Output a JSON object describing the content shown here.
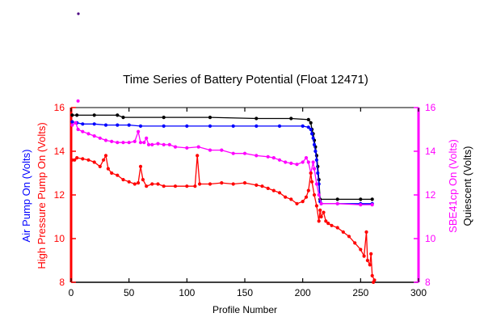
{
  "chart_data": {
    "type": "line",
    "title": "Time Series of Battery Potential (Float 12471)",
    "xlabel": "Profile Number",
    "xlim": [
      0,
      300
    ],
    "x_ticks": [
      0,
      50,
      100,
      150,
      200,
      250,
      300
    ],
    "ylim": [
      8,
      16
    ],
    "y_ticks": [
      8,
      10,
      12,
      14,
      16
    ],
    "left_axis_labels": [
      {
        "text": "Air Pump On (Volts)",
        "color": "#0000ff"
      },
      {
        "text": "High Pressure Pump On (Volts)",
        "color": "#ff0000"
      }
    ],
    "right_axis_labels": [
      {
        "text": "SBE41cp On (Volts)",
        "color": "#ff00ff"
      },
      {
        "text": "Quiescent (Volts)",
        "color": "#000000"
      }
    ],
    "left_axis_color": "#ff0000",
    "right_axis_color": "#ff00ff",
    "grid": false,
    "series": [
      {
        "color": "#000000",
        "points": [
          [
            1,
            15.65
          ],
          [
            5,
            15.65
          ],
          [
            20,
            15.65
          ],
          [
            40,
            15.65
          ],
          [
            45,
            15.55
          ],
          [
            80,
            15.55
          ],
          [
            120,
            15.55
          ],
          [
            160,
            15.5
          ],
          [
            190,
            15.5
          ],
          [
            205,
            15.45
          ],
          [
            207,
            15.3
          ],
          [
            208,
            15.0
          ],
          [
            209,
            14.8
          ],
          [
            210,
            14.5
          ],
          [
            211,
            14.2
          ],
          [
            212,
            13.8
          ],
          [
            213,
            13.3
          ],
          [
            214,
            12.7
          ],
          [
            215,
            11.8
          ],
          [
            230,
            11.8
          ],
          [
            250,
            11.8
          ],
          [
            260,
            11.8
          ]
        ]
      },
      {
        "color": "#0000ff",
        "points": [
          [
            1,
            15.35
          ],
          [
            5,
            15.3
          ],
          [
            10,
            15.25
          ],
          [
            20,
            15.25
          ],
          [
            30,
            15.2
          ],
          [
            40,
            15.2
          ],
          [
            50,
            15.2
          ],
          [
            60,
            15.15
          ],
          [
            80,
            15.15
          ],
          [
            100,
            15.15
          ],
          [
            120,
            15.15
          ],
          [
            140,
            15.15
          ],
          [
            160,
            15.15
          ],
          [
            180,
            15.15
          ],
          [
            200,
            15.15
          ],
          [
            205,
            15.1
          ],
          [
            207,
            15.0
          ],
          [
            208,
            14.8
          ],
          [
            209,
            14.6
          ],
          [
            210,
            14.3
          ],
          [
            211,
            14.0
          ],
          [
            212,
            13.6
          ],
          [
            213,
            13.0
          ],
          [
            214,
            12.5
          ],
          [
            215,
            11.7
          ],
          [
            216,
            11.6
          ],
          [
            230,
            11.6
          ],
          [
            250,
            11.6
          ],
          [
            260,
            11.6
          ]
        ]
      },
      {
        "color": "#ff00ff",
        "points": [
          [
            1,
            15.2
          ],
          [
            4,
            15.3
          ],
          [
            6,
            15.0
          ],
          [
            10,
            14.9
          ],
          [
            15,
            14.8
          ],
          [
            20,
            14.7
          ],
          [
            25,
            14.6
          ],
          [
            30,
            14.5
          ],
          [
            35,
            14.45
          ],
          [
            40,
            14.4
          ],
          [
            45,
            14.4
          ],
          [
            50,
            14.4
          ],
          [
            55,
            14.45
          ],
          [
            58,
            14.9
          ],
          [
            60,
            14.4
          ],
          [
            63,
            14.4
          ],
          [
            65,
            14.6
          ],
          [
            67,
            14.3
          ],
          [
            70,
            14.3
          ],
          [
            75,
            14.35
          ],
          [
            80,
            14.3
          ],
          [
            85,
            14.3
          ],
          [
            90,
            14.2
          ],
          [
            100,
            14.15
          ],
          [
            110,
            14.2
          ],
          [
            120,
            14.05
          ],
          [
            130,
            14.05
          ],
          [
            140,
            13.9
          ],
          [
            150,
            13.9
          ],
          [
            160,
            13.8
          ],
          [
            170,
            13.75
          ],
          [
            175,
            13.7
          ],
          [
            180,
            13.6
          ],
          [
            185,
            13.5
          ],
          [
            190,
            13.45
          ],
          [
            195,
            13.4
          ],
          [
            200,
            13.5
          ],
          [
            203,
            13.7
          ],
          [
            205,
            13.5
          ],
          [
            207,
            13.0
          ],
          [
            209,
            13.5
          ],
          [
            210,
            13.2
          ],
          [
            212,
            12.5
          ],
          [
            214,
            12.0
          ],
          [
            216,
            11.6
          ],
          [
            230,
            11.6
          ],
          [
            250,
            11.55
          ],
          [
            260,
            11.55
          ]
        ]
      },
      {
        "color": "#ff0000",
        "points": [
          [
            1,
            13.6
          ],
          [
            3,
            13.6
          ],
          [
            5,
            13.7
          ],
          [
            10,
            13.65
          ],
          [
            15,
            13.6
          ],
          [
            20,
            13.5
          ],
          [
            25,
            13.3
          ],
          [
            28,
            13.6
          ],
          [
            30,
            13.8
          ],
          [
            32,
            13.2
          ],
          [
            35,
            13.0
          ],
          [
            40,
            12.9
          ],
          [
            45,
            12.7
          ],
          [
            50,
            12.6
          ],
          [
            55,
            12.5
          ],
          [
            58,
            12.55
          ],
          [
            60,
            13.3
          ],
          [
            62,
            12.7
          ],
          [
            65,
            12.4
          ],
          [
            70,
            12.5
          ],
          [
            75,
            12.5
          ],
          [
            80,
            12.4
          ],
          [
            90,
            12.4
          ],
          [
            100,
            12.4
          ],
          [
            107,
            12.4
          ],
          [
            109,
            13.8
          ],
          [
            111,
            12.5
          ],
          [
            120,
            12.5
          ],
          [
            130,
            12.55
          ],
          [
            140,
            12.5
          ],
          [
            150,
            12.55
          ],
          [
            160,
            12.45
          ],
          [
            165,
            12.4
          ],
          [
            170,
            12.3
          ],
          [
            175,
            12.2
          ],
          [
            180,
            12.1
          ],
          [
            185,
            11.9
          ],
          [
            190,
            11.8
          ],
          [
            195,
            11.6
          ],
          [
            200,
            11.7
          ],
          [
            203,
            11.9
          ],
          [
            205,
            12.2
          ],
          [
            207,
            13.0
          ],
          [
            208,
            12.6
          ],
          [
            210,
            12.0
          ],
          [
            212,
            11.5
          ],
          [
            214,
            10.8
          ],
          [
            215,
            11.3
          ],
          [
            216,
            11.0
          ],
          [
            218,
            11.2
          ],
          [
            220,
            10.8
          ],
          [
            222,
            10.7
          ],
          [
            225,
            10.6
          ],
          [
            230,
            10.5
          ],
          [
            235,
            10.3
          ],
          [
            240,
            10.1
          ],
          [
            245,
            9.8
          ],
          [
            250,
            9.5
          ],
          [
            253,
            9.2
          ],
          [
            255,
            10.3
          ],
          [
            256,
            9.0
          ],
          [
            258,
            8.8
          ],
          [
            259,
            9.3
          ],
          [
            260,
            8.3
          ],
          [
            262,
            8.1
          ]
        ]
      }
    ],
    "outlier_points": [
      {
        "x": 6,
        "y": 16.3,
        "color": "#ff00ff"
      },
      {
        "x": 261,
        "y": 8.0,
        "color": "#ff0000"
      }
    ]
  }
}
